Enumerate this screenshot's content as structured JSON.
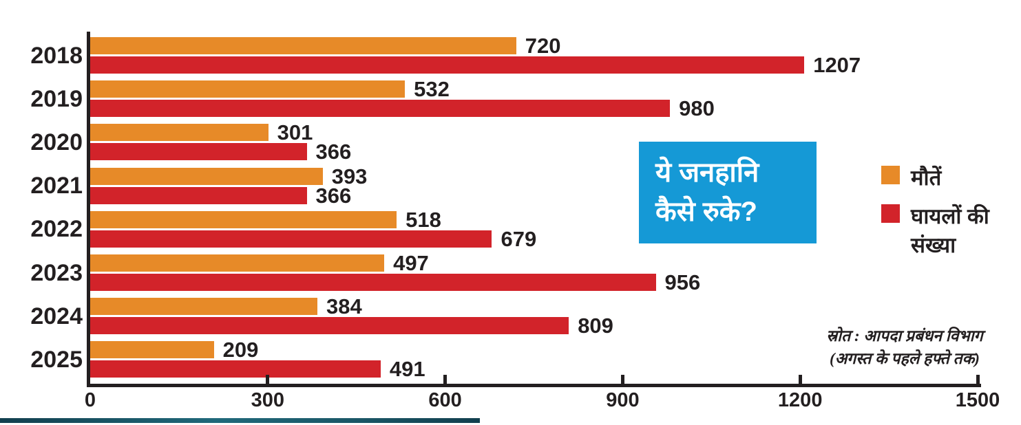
{
  "title_box": {
    "line1": "ये जनहानि",
    "line2": "कैसे रुके?",
    "bg_color": "#1599d6",
    "text_color": "#ffffff"
  },
  "legend": {
    "items": [
      {
        "label": "मौतें",
        "color": "#e78a28"
      },
      {
        "label": "घायलों की संख्या",
        "color": "#d2232a"
      }
    ]
  },
  "source": {
    "line1": "स्रोत : आपदा प्रबंधन विभाग",
    "line2": "(अगस्त के पहले हफ्ते तक)"
  },
  "colors": {
    "deaths_orange": "#e78a28",
    "injured_red": "#d2232a",
    "axis_black": "#231f20",
    "title_blue": "#1599d6",
    "bottom_rule_teal": "#123f4e"
  },
  "chart_data": {
    "type": "bar",
    "orientation": "horizontal",
    "title": "ये जनहानि कैसे रुके?",
    "categories": [
      "2018",
      "2019",
      "2020",
      "2021",
      "2022",
      "2023",
      "2024",
      "2025"
    ],
    "series": [
      {
        "name": "मौतें",
        "color": "#e78a28",
        "values": [
          720,
          532,
          301,
          393,
          518,
          497,
          384,
          209
        ]
      },
      {
        "name": "घायलों की संख्या",
        "color": "#d2232a",
        "values": [
          1207,
          980,
          366,
          366,
          679,
          956,
          809,
          491
        ]
      }
    ],
    "xlabel": "",
    "ylabel": "",
    "xlim": [
      0,
      1500
    ],
    "xticks": [
      0,
      300,
      600,
      900,
      1200,
      1500
    ],
    "grid": false,
    "legend_position": "right",
    "value_labels": true,
    "source": "स्रोत : आपदा प्रबंधन विभाग (अगस्त के पहले हफ्ते तक)"
  }
}
